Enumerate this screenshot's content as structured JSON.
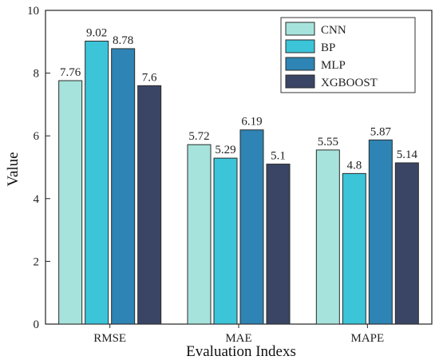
{
  "chart_data": {
    "type": "bar",
    "title": "",
    "xlabel": "Evaluation Indexs",
    "ylabel": "Value",
    "ylim": [
      0,
      10
    ],
    "yticks": [
      "0",
      "2",
      "4",
      "6",
      "8",
      "10"
    ],
    "categories": [
      "RMSE",
      "MAE",
      "MAPE"
    ],
    "series": [
      {
        "name": "CNN",
        "color": "#a6e3dc",
        "values": [
          7.76,
          5.72,
          5.55
        ],
        "labels": [
          "7.76",
          "5.72",
          "5.55"
        ]
      },
      {
        "name": "BP",
        "color": "#3cc4d8",
        "values": [
          9.02,
          5.29,
          4.8
        ],
        "labels": [
          "9.02",
          "5.29",
          "4.8"
        ]
      },
      {
        "name": "MLP",
        "color": "#2e84b4",
        "values": [
          8.78,
          6.19,
          5.87
        ],
        "labels": [
          "8.78",
          "6.19",
          "5.87"
        ]
      },
      {
        "name": "XGBOOST",
        "color": "#3a4566",
        "values": [
          7.6,
          5.1,
          5.14
        ],
        "labels": [
          "7.6",
          "5.1",
          "5.14"
        ]
      }
    ],
    "legend_position": "top-right",
    "grid": false
  }
}
